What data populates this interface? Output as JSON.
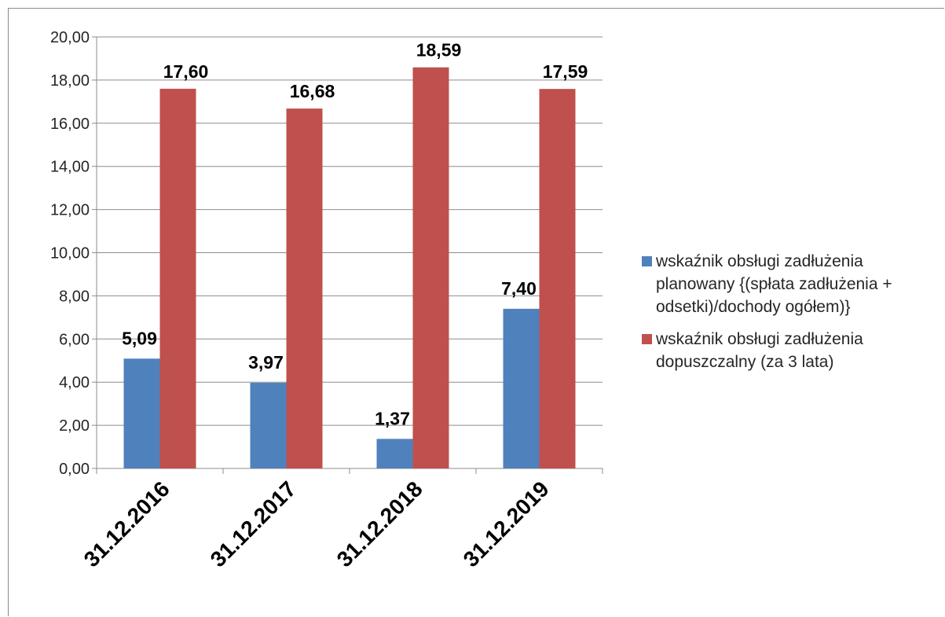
{
  "chart_data": {
    "type": "bar",
    "categories": [
      "31.12.2016",
      "31.12.2017",
      "31.12.2018",
      "31.12.2019"
    ],
    "series": [
      {
        "name": "wskaźnik obsługi zadłużenia planowany {(spłata zadłużenia + odsetki)/dochody ogółem)}",
        "values": [
          5.09,
          3.97,
          1.37,
          7.4
        ],
        "labels": [
          "5,09",
          "3,97",
          "1,37",
          "7,40"
        ],
        "color": "#4f81bd"
      },
      {
        "name": "wskaźnik obsługi zadłużenia dopuszczalny (za 3 lata)",
        "values": [
          17.6,
          16.68,
          18.59,
          17.59
        ],
        "labels": [
          "17,60",
          "16,68",
          "18,59",
          "17,59"
        ],
        "color": "#c0504d"
      }
    ],
    "yticks": [
      "0,00",
      "2,00",
      "4,00",
      "6,00",
      "8,00",
      "10,00",
      "12,00",
      "14,00",
      "16,00",
      "18,00",
      "20,00"
    ],
    "ylim": [
      0,
      20
    ],
    "grid": true,
    "legend": "right",
    "title": "",
    "xlabel": "",
    "ylabel": ""
  }
}
